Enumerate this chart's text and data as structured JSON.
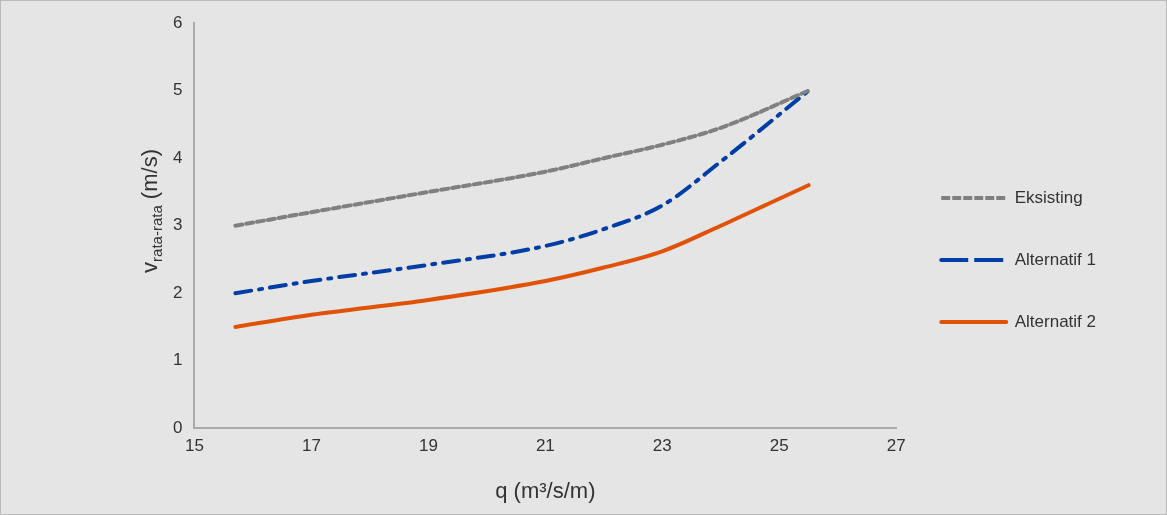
{
  "chart_data": {
    "type": "line",
    "xlabel": "q (m³/s/m)",
    "ylabel": "v$_{rata-rata}$ (m/s)",
    "xlim": [
      15,
      27
    ],
    "xticks": [
      15,
      17,
      19,
      21,
      23,
      25,
      27
    ],
    "ylim": [
      0,
      6
    ],
    "yticks": [
      0,
      1,
      2,
      3,
      4,
      5,
      6
    ],
    "grid": false,
    "legend": "right",
    "marker": "none",
    "series": [
      {
        "name": "Eksisting",
        "color": "#808080",
        "line_style": "dashed",
        "x": [
          15.7,
          17,
          19,
          21,
          22,
          23,
          24,
          25.5
        ],
        "values": [
          3.0,
          3.2,
          3.5,
          3.8,
          4.0,
          4.2,
          4.45,
          5.0
        ]
      },
      {
        "name": "Alternatif 1",
        "color": "#003da5",
        "line_style": "dashdot",
        "x": [
          15.7,
          17,
          19,
          21,
          22,
          23,
          24,
          25.5
        ],
        "values": [
          2.0,
          2.18,
          2.42,
          2.7,
          2.95,
          3.3,
          3.95,
          5.0
        ]
      },
      {
        "name": "Alternatif 2",
        "color": "#e05206",
        "line_style": "solid",
        "x": [
          15.7,
          17,
          19,
          21,
          22,
          23,
          24,
          25,
          25.5
        ],
        "values": [
          1.5,
          1.68,
          1.9,
          2.18,
          2.38,
          2.62,
          3.0,
          3.4,
          3.6
        ]
      }
    ]
  }
}
